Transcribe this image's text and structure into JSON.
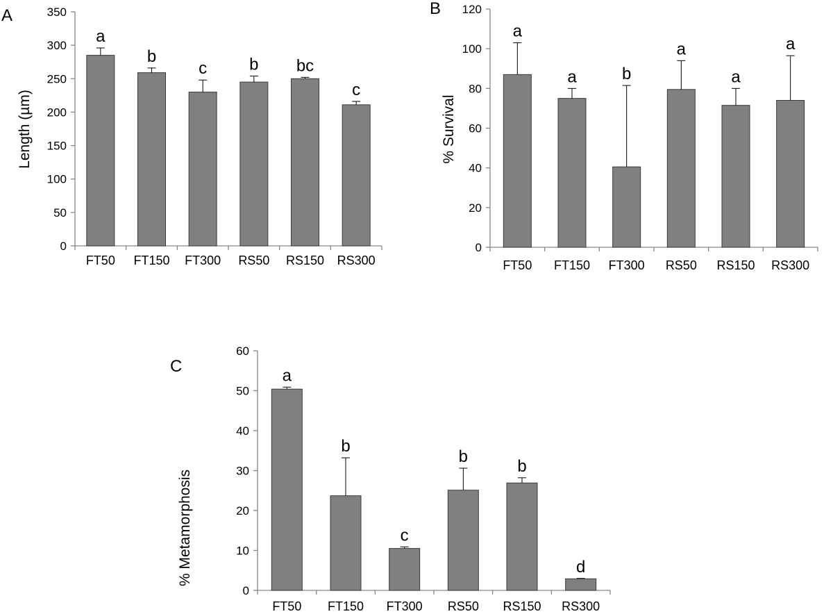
{
  "chart_data": [
    {
      "type": "bar",
      "panel": "A",
      "ylabel": "Length (µm)",
      "ylim": [
        0,
        350
      ],
      "yticks": [
        0,
        50,
        100,
        150,
        200,
        250,
        300,
        350
      ],
      "categories": [
        "FT50",
        "FT150",
        "FT300",
        "RS50",
        "RS150",
        "RS300"
      ],
      "values": [
        285,
        259,
        230,
        245,
        250,
        211
      ],
      "errors": [
        11,
        7,
        18,
        9,
        2,
        5
      ],
      "significance": [
        "a",
        "b",
        "c",
        "b",
        "bc",
        "c"
      ],
      "bar_color": "#808080",
      "grid": false
    },
    {
      "type": "bar",
      "panel": "B",
      "ylabel": "% Survival",
      "ylim": [
        0,
        120
      ],
      "yticks": [
        0,
        20,
        40,
        60,
        80,
        100,
        120
      ],
      "categories": [
        "FT50",
        "FT150",
        "FT300",
        "RS50",
        "RS150",
        "RS300"
      ],
      "values": [
        87,
        75,
        40.5,
        79.5,
        71.5,
        74
      ],
      "errors": [
        16,
        5,
        41,
        14.5,
        8.5,
        22.5
      ],
      "significance": [
        "a",
        "a",
        "b",
        "a",
        "a",
        "a"
      ],
      "bar_color": "#808080",
      "grid": false
    },
    {
      "type": "bar",
      "panel": "C",
      "ylabel": "% Metamorphosis",
      "ylim": [
        0,
        60
      ],
      "yticks": [
        0,
        10,
        20,
        30,
        40,
        50,
        60
      ],
      "categories": [
        "FT50",
        "FT150",
        "FT300",
        "RS50",
        "RS150",
        "RS300"
      ],
      "values": [
        50.4,
        23.7,
        10.5,
        25.1,
        26.9,
        2.9
      ],
      "errors": [
        0.5,
        9.5,
        0.4,
        5.5,
        1.3,
        0.1
      ],
      "significance": [
        "a",
        "b",
        "c",
        "b",
        "b",
        "d"
      ],
      "bar_color": "#808080",
      "grid": false
    }
  ]
}
